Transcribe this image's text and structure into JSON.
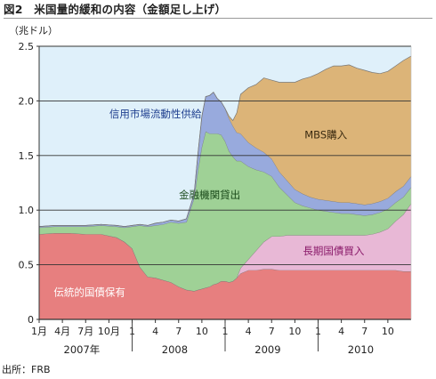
{
  "figure": {
    "title": "図2　米国量的緩和の内容（金額足し上げ）",
    "unit": "（兆ドル）",
    "source": "出所：FRB"
  },
  "chart_data": {
    "type": "area",
    "stacked": true,
    "title": "図2　米国量的緩和の内容（金額足し上げ）",
    "ylabel": "（兆ドル）",
    "ylim": [
      0,
      2.5
    ],
    "yticks": [
      "0",
      "0.5",
      "1.0",
      "1.5",
      "2.0",
      "2.5"
    ],
    "yticks_values": [
      0,
      0.5,
      1.0,
      1.5,
      2.0,
      2.5
    ],
    "grid": "horizontal",
    "x_month_ticks": [
      {
        "label": "1月",
        "t": 0
      },
      {
        "label": "4月",
        "t": 3
      },
      {
        "label": "7月",
        "t": 6
      },
      {
        "label": "10月",
        "t": 9
      },
      {
        "label": "1",
        "t": 12
      },
      {
        "label": "4",
        "t": 15
      },
      {
        "label": "7",
        "t": 18
      },
      {
        "label": "10",
        "t": 21
      },
      {
        "label": "1",
        "t": 24
      },
      {
        "label": "4",
        "t": 27
      },
      {
        "label": "7",
        "t": 30
      },
      {
        "label": "10",
        "t": 33
      },
      {
        "label": "1",
        "t": 36
      },
      {
        "label": "4",
        "t": 39
      },
      {
        "label": "7",
        "t": 42
      },
      {
        "label": "10",
        "t": 45
      }
    ],
    "x_year_labels": [
      {
        "label": "2007年",
        "t": 5.5
      },
      {
        "label": "2008",
        "t": 17.5
      },
      {
        "label": "2009",
        "t": 29.5
      },
      {
        "label": "2010",
        "t": 41.5
      }
    ],
    "x_start": "2007-01",
    "x_range_months": [
      0,
      48
    ],
    "x": [
      0,
      2,
      4,
      6,
      8,
      10,
      11,
      12,
      13,
      14,
      15,
      16,
      17,
      18,
      19,
      20,
      20.5,
      21,
      21.5,
      22,
      22.5,
      23,
      23.5,
      24,
      24.5,
      25,
      25.5,
      26,
      27,
      28,
      29,
      30,
      31,
      32,
      33,
      34,
      35,
      36,
      37,
      38,
      39,
      40,
      41,
      42,
      43,
      44,
      45,
      46,
      47,
      48
    ],
    "series": [
      {
        "name": "伝統的国債保有",
        "color": "#e77f7f",
        "values": [
          0.78,
          0.79,
          0.79,
          0.78,
          0.78,
          0.75,
          0.71,
          0.65,
          0.48,
          0.39,
          0.38,
          0.36,
          0.34,
          0.3,
          0.27,
          0.26,
          0.27,
          0.28,
          0.29,
          0.3,
          0.32,
          0.33,
          0.35,
          0.35,
          0.34,
          0.35,
          0.38,
          0.42,
          0.45,
          0.45,
          0.46,
          0.46,
          0.45,
          0.45,
          0.45,
          0.45,
          0.45,
          0.45,
          0.45,
          0.45,
          0.45,
          0.45,
          0.45,
          0.45,
          0.45,
          0.45,
          0.45,
          0.45,
          0.44,
          0.44
        ]
      },
      {
        "name": "長期国債買入",
        "color": "#e8b8d6",
        "values": [
          0,
          0,
          0,
          0,
          0,
          0,
          0,
          0,
          0,
          0,
          0,
          0,
          0,
          0,
          0,
          0,
          0,
          0,
          0,
          0,
          0,
          0,
          0,
          0,
          0,
          0,
          0,
          0.05,
          0.1,
          0.18,
          0.25,
          0.3,
          0.31,
          0.32,
          0.32,
          0.32,
          0.32,
          0.32,
          0.32,
          0.32,
          0.32,
          0.32,
          0.32,
          0.32,
          0.33,
          0.35,
          0.38,
          0.45,
          0.52,
          0.62
        ]
      },
      {
        "name": "金融機関貸出",
        "color": "#9fd196",
        "values": [
          0.06,
          0.06,
          0.06,
          0.07,
          0.08,
          0.1,
          0.13,
          0.2,
          0.38,
          0.46,
          0.48,
          0.51,
          0.55,
          0.58,
          0.62,
          0.85,
          1.1,
          1.3,
          1.43,
          1.4,
          1.38,
          1.37,
          1.34,
          1.28,
          1.2,
          1.14,
          1.07,
          0.98,
          0.85,
          0.74,
          0.64,
          0.55,
          0.45,
          0.37,
          0.3,
          0.27,
          0.25,
          0.23,
          0.22,
          0.21,
          0.2,
          0.2,
          0.19,
          0.18,
          0.18,
          0.18,
          0.18,
          0.17,
          0.16,
          0.15
        ]
      },
      {
        "name": "信用市場流動性供給",
        "color": "#98aadd",
        "values": [
          0.01,
          0.01,
          0.01,
          0.01,
          0.01,
          0.01,
          0.01,
          0.01,
          0.01,
          0.01,
          0.02,
          0.02,
          0.02,
          0.02,
          0.03,
          0.04,
          0.15,
          0.28,
          0.32,
          0.35,
          0.38,
          0.32,
          0.3,
          0.3,
          0.3,
          0.28,
          0.26,
          0.25,
          0.22,
          0.2,
          0.18,
          0.16,
          0.14,
          0.13,
          0.12,
          0.11,
          0.1,
          0.1,
          0.1,
          0.1,
          0.1,
          0.1,
          0.1,
          0.1,
          0.1,
          0.1,
          0.1,
          0.1,
          0.1,
          0.1
        ]
      },
      {
        "name": "MBS購入",
        "color": "#dcb478",
        "values": [
          0,
          0,
          0,
          0,
          0,
          0,
          0,
          0,
          0,
          0,
          0,
          0,
          0,
          0,
          0,
          0,
          0,
          0,
          0,
          0,
          0,
          0,
          0,
          0,
          0.02,
          0.05,
          0.18,
          0.36,
          0.5,
          0.58,
          0.68,
          0.72,
          0.82,
          0.9,
          0.98,
          1.05,
          1.1,
          1.15,
          1.2,
          1.24,
          1.25,
          1.26,
          1.24,
          1.23,
          1.2,
          1.17,
          1.16,
          1.15,
          1.15,
          1.1
        ]
      }
    ],
    "annotations": [
      {
        "text": "信用市場流動性供給",
        "color": "#1f3f8f",
        "series": "信用市場流動性供給"
      },
      {
        "text": "MBS購入",
        "color": "#3a2a10",
        "series": "MBS購入"
      },
      {
        "text": "金融機関貸出",
        "color": "#1a4a1a",
        "series": "金融機関貸出"
      },
      {
        "text": "長期国債買入",
        "color": "#8a1a6a",
        "series": "長期国債買入"
      },
      {
        "text": "伝統的国債保有",
        "color": "#ffffff",
        "series": "伝統的国債保有"
      }
    ]
  }
}
